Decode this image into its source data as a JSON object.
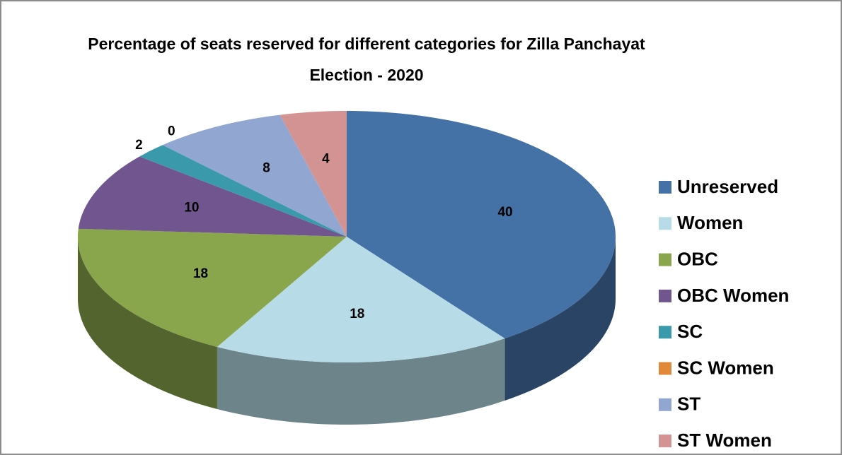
{
  "chart_data": {
    "type": "pie",
    "title": "Percentage of seats reserved for different categories for Zilla Panchayat Election - 2020",
    "categories": [
      "Unreserved",
      "Women",
      "OBC",
      "OBC Women",
      "SC",
      "SC Women",
      "ST",
      "ST Women"
    ],
    "values": [
      40,
      18,
      18,
      10,
      2,
      0,
      8,
      4
    ],
    "colors": [
      "#4471a6",
      "#b7dce8",
      "#8aa64c",
      "#71558f",
      "#3a9aab",
      "#e0893b",
      "#91a7d1",
      "#d49393"
    ],
    "legend": "right"
  }
}
